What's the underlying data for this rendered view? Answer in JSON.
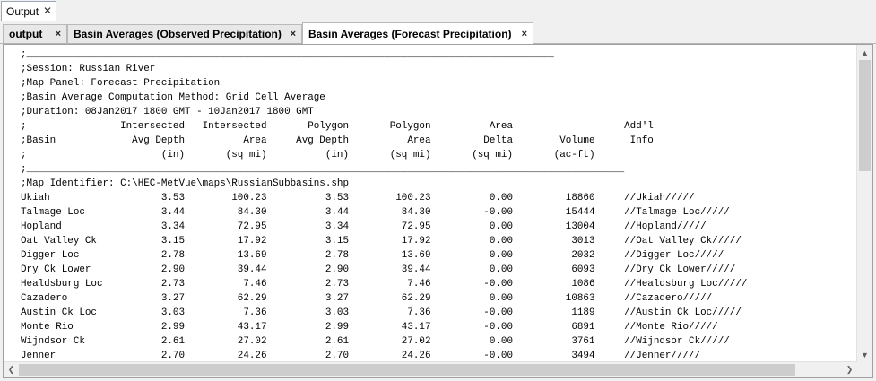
{
  "panel": {
    "title": "Output",
    "close": "✕"
  },
  "tabs": [
    {
      "label": "output",
      "close": "×"
    },
    {
      "label": "Basin Averages (Observed Precipitation)",
      "close": "×"
    },
    {
      "label": "Basin Averages (Forecast Precipitation)",
      "close": "×"
    }
  ],
  "report": {
    "lines": [
      ";__________________________________________________________________________________________",
      ";Session: Russian River",
      ";Map Panel: Forecast Precipitation",
      ";Basin Average Computation Method: Grid Cell Average",
      ";Duration: 08Jan2017 1800 GMT - 10Jan2017 1800 GMT",
      ";                Intersected   Intersected       Polygon       Polygon          Area                   Add'l",
      ";Basin             Avg Depth          Area     Avg Depth          Area         Delta        Volume      Info",
      ";                       (in)       (sq mi)          (in)       (sq mi)       (sq mi)       (ac-ft)",
      ";______________________________________________________________________________________________________",
      ";Map Identifier: C:\\HEC-MetVue\\maps\\RussianSubbasins.shp",
      "Ukiah                   3.53        100.23          3.53        100.23          0.00         18860     //Ukiah/////",
      "Talmage Loc             3.44         84.30          3.44         84.30         -0.00         15444     //Talmage Loc/////",
      "Hopland                 3.34         72.95          3.34         72.95          0.00         13004     //Hopland/////",
      "Oat Valley Ck           3.15         17.92          3.15         17.92          0.00          3013     //Oat Valley Ck/////",
      "Digger Loc              2.78         13.69          2.78         13.69          0.00          2032     //Digger Loc/////",
      "Dry Ck Lower            2.90         39.44          2.90         39.44          0.00          6093     //Dry Ck Lower/////",
      "Healdsburg Loc          2.73          7.46          2.73          7.46         -0.00          1086     //Healdsburg Loc/////",
      "Cazadero                3.27         62.29          3.27         62.29          0.00         10863     //Cazadero/////",
      "Austin Ck Loc           3.03          7.36          3.03          7.36         -0.00          1189     //Austin Ck Loc/////",
      "Monte Rio               2.99         43.17          2.99         43.17         -0.00          6891     //Monte Rio/////",
      "Wijndsor Ck             2.61         27.02          2.61         27.02          0.00          3761     //Wijndsor Ck/////",
      "Jenner                  2.70         24.26          2.70         24.26         -0.00          3494     //Jenner/////"
    ]
  },
  "scrollbars": {
    "up": "▲",
    "down": "▼",
    "left": "❮",
    "right": "❯"
  }
}
